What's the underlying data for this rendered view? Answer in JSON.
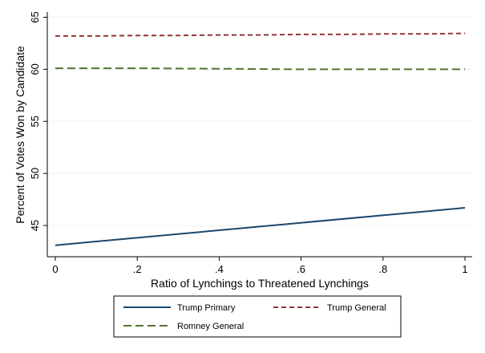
{
  "chart_data": {
    "type": "line",
    "xlabel": "Ratio of Lynchings to Threatened Lynchings",
    "ylabel": "Percent of Votes Won by Candidate",
    "xlim": [
      0,
      1
    ],
    "ylim": [
      42,
      65.5
    ],
    "xticks": [
      {
        "value": 0,
        "label": "0"
      },
      {
        "value": 0.2,
        "label": ".2"
      },
      {
        "value": 0.4,
        "label": ".4"
      },
      {
        "value": 0.6,
        "label": ".6"
      },
      {
        "value": 0.8,
        "label": ".8"
      },
      {
        "value": 1,
        "label": "1"
      }
    ],
    "yticks": [
      {
        "value": 45,
        "label": "45"
      },
      {
        "value": 50,
        "label": "50"
      },
      {
        "value": 55,
        "label": "55"
      },
      {
        "value": 60,
        "label": "60"
      },
      {
        "value": 65,
        "label": "65"
      }
    ],
    "grid": "horizontal",
    "legend_position": "bottom",
    "series": [
      {
        "name": "Trump Primary",
        "color": "#1a476f",
        "dash": "solid",
        "x": [
          0,
          1
        ],
        "y": [
          43.1,
          46.7
        ]
      },
      {
        "name": "Trump General",
        "color": "#90353b",
        "dash": "short-dash",
        "x": [
          0,
          0.1,
          0.2,
          0.3,
          0.4,
          0.5,
          0.6,
          0.7,
          0.8,
          0.9,
          1
        ],
        "y": [
          63.2,
          63.2,
          63.25,
          63.25,
          63.3,
          63.3,
          63.35,
          63.35,
          63.4,
          63.4,
          63.45
        ]
      },
      {
        "name": "Romney General",
        "color": "#55752f",
        "dash": "long-dash",
        "x": [
          0,
          0.2,
          0.4,
          0.6,
          0.8,
          1
        ],
        "y": [
          60.1,
          60.1,
          60.05,
          60.0,
          60.0,
          60.0
        ]
      }
    ]
  }
}
